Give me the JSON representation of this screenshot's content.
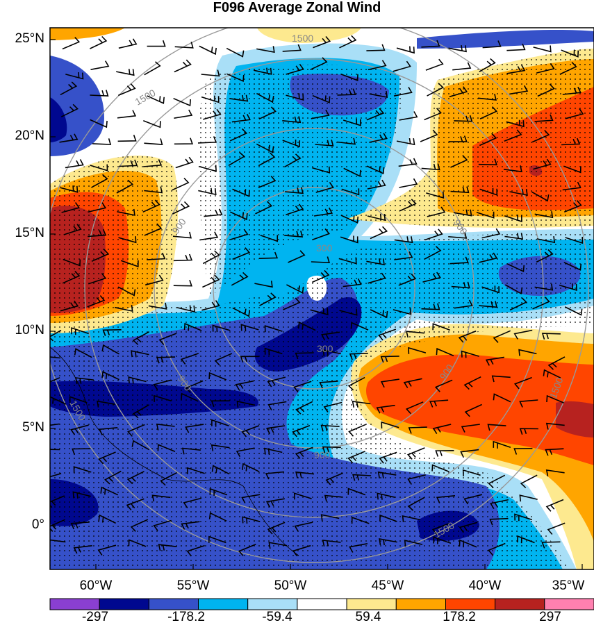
{
  "title": "F096 Average Zonal Wind",
  "lat_labels": [
    "25°N",
    "20°N",
    "15°N",
    "10°N",
    "5°N",
    "0°"
  ],
  "lon_labels": [
    "60°W",
    "55°W",
    "50°W",
    "45°W",
    "40°W",
    "35°W"
  ],
  "range_ring_labels": [
    "300",
    "900",
    "1500"
  ],
  "colorbar": {
    "tick_labels": [
      "-297",
      "-178.2",
      "-59.4",
      "59.4",
      "178.2",
      "297"
    ],
    "colors": [
      "#8a3fd1",
      "#00088f",
      "#3651c9",
      "#00b4f0",
      "#a9dff7",
      "#ffffff",
      "#fde98f",
      "#ffa500",
      "#ff4500",
      "#b7221f",
      "#ff80b0"
    ]
  },
  "map_colors": {
    "deep_blue": "#00088f",
    "mid_blue": "#3651c9",
    "cyan": "#00b4f0",
    "light_blue": "#a9dff7",
    "pale_yellow": "#fde98f",
    "orange": "#ffa500",
    "red_orange": "#ff4500",
    "dark_red": "#b7221f"
  }
}
